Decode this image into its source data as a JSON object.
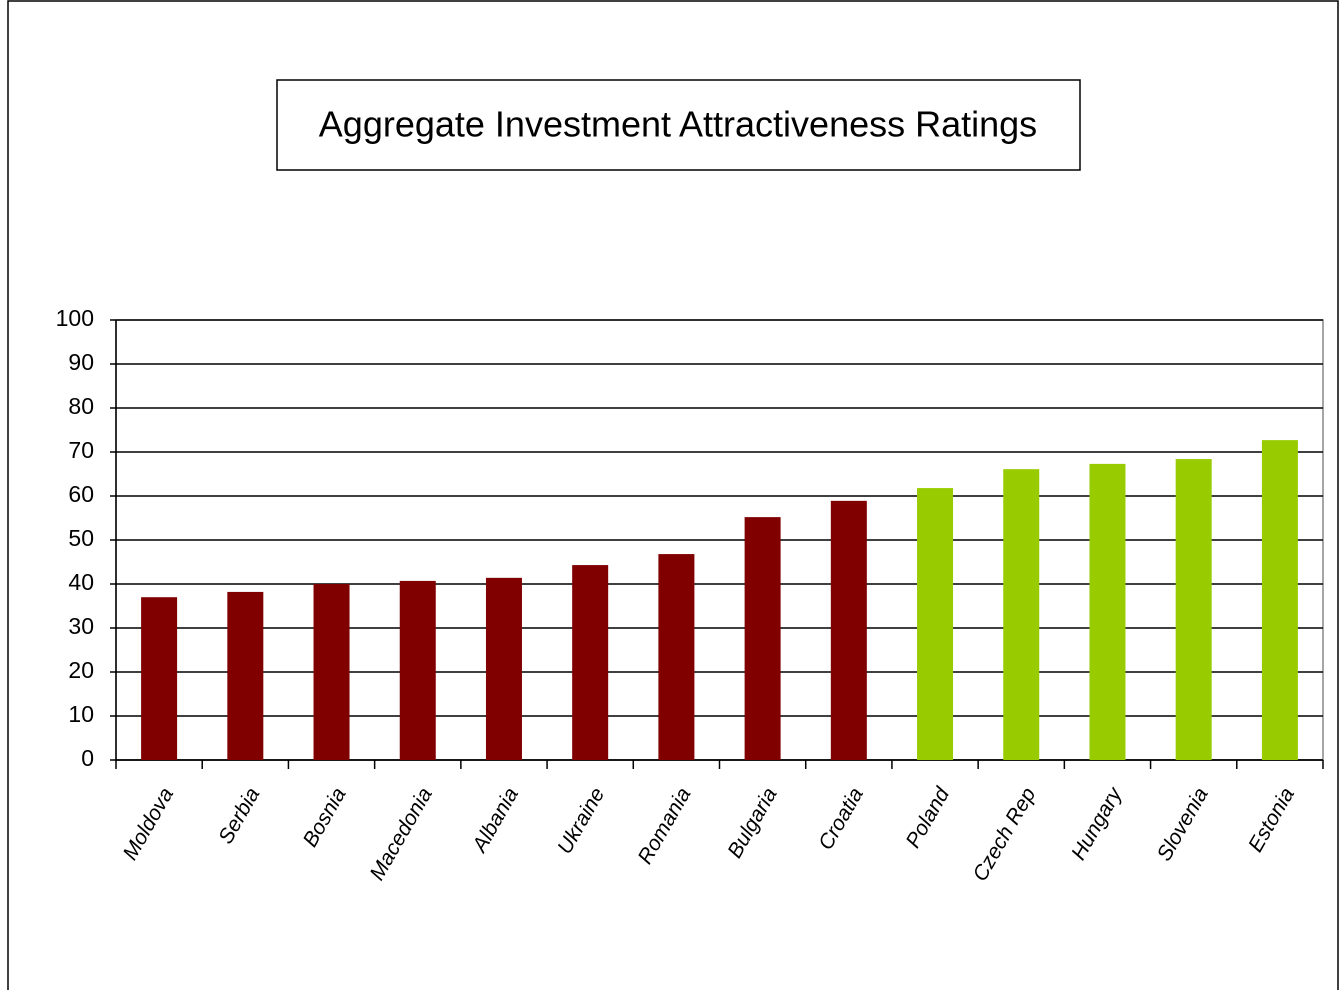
{
  "chart_data": {
    "type": "bar",
    "title": "Aggregate Investment Attractiveness Ratings",
    "categories": [
      "Moldova",
      "Serbia",
      "Bosnia",
      "Macedonia",
      "Albania",
      "Ukraine",
      "Romania",
      "Bulgaria",
      "Croatia",
      "Poland",
      "Czech Rep",
      "Hungary",
      "Slovenia",
      "Estonia"
    ],
    "values": [
      37.0,
      38.2,
      40.0,
      40.7,
      41.4,
      44.3,
      46.8,
      55.2,
      58.9,
      61.8,
      66.1,
      67.3,
      68.4,
      72.7
    ],
    "colors": [
      "#800000",
      "#800000",
      "#800000",
      "#800000",
      "#800000",
      "#800000",
      "#800000",
      "#800000",
      "#800000",
      "#99cc00",
      "#99cc00",
      "#99cc00",
      "#99cc00",
      "#99cc00"
    ],
    "ylim": [
      0,
      100
    ],
    "yticks": [
      0,
      10,
      20,
      30,
      40,
      50,
      60,
      70,
      80,
      90,
      100
    ],
    "grid": true
  }
}
